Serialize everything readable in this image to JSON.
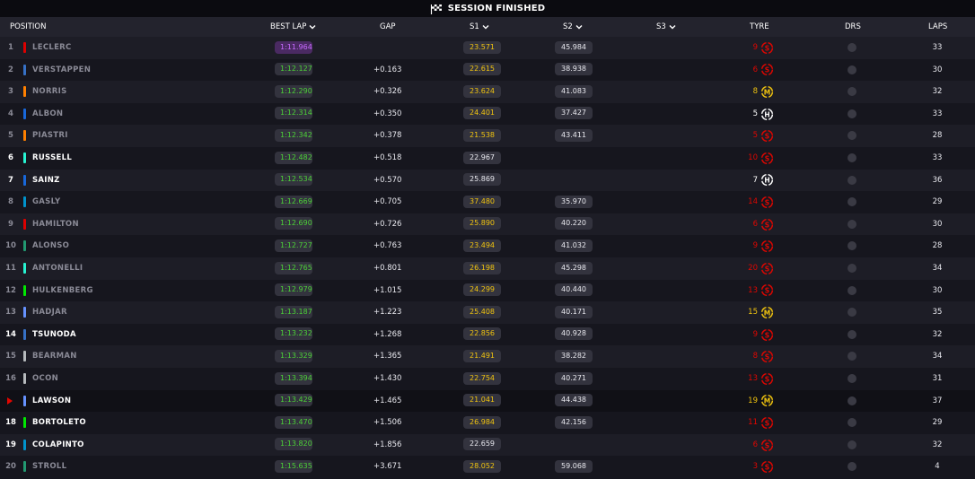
{
  "banner": {
    "title": "SESSION FINISHED",
    "icon": "checkered-flag-icon"
  },
  "columns": {
    "position": "POSITION",
    "best_lap": "BEST LAP",
    "gap": "GAP",
    "s1": "S1",
    "s2": "S2",
    "s3": "S3",
    "tyre": "TYRE",
    "drs": "DRS",
    "laps": "LAPS"
  },
  "colors": {
    "soft": "#e10600",
    "medium": "#f1c40f",
    "hard": "#ffffff",
    "fastest_lap": "#c86bff",
    "personal_best": "#4cd137"
  },
  "rows": [
    {
      "pos": "1",
      "name": "LECLERC",
      "team_color": "#dc0000",
      "best_lap": "1:11.964",
      "gap": "",
      "s1": "23.571",
      "s1_color": "yellow",
      "s2": "45.984",
      "tyre_age": "9",
      "compound": "S",
      "laps": "33",
      "bright": false,
      "fastest": true
    },
    {
      "pos": "2",
      "name": "VERSTAPPEN",
      "team_color": "#3671c6",
      "best_lap": "1:12.127",
      "gap": "+0.163",
      "s1": "22.615",
      "s1_color": "yellow",
      "s2": "38.938",
      "tyre_age": "6",
      "compound": "S",
      "laps": "30",
      "bright": false
    },
    {
      "pos": "3",
      "name": "NORRIS",
      "team_color": "#ff8000",
      "best_lap": "1:12.290",
      "gap": "+0.326",
      "s1": "23.624",
      "s1_color": "yellow",
      "s2": "41.083",
      "tyre_age": "8",
      "compound": "M",
      "laps": "32",
      "bright": false
    },
    {
      "pos": "4",
      "name": "ALBON",
      "team_color": "#1868db",
      "best_lap": "1:12.314",
      "gap": "+0.350",
      "s1": "24.401",
      "s1_color": "yellow",
      "s2": "37.427",
      "tyre_age": "5",
      "compound": "H",
      "laps": "33",
      "bright": false
    },
    {
      "pos": "5",
      "name": "PIASTRI",
      "team_color": "#ff8000",
      "best_lap": "1:12.342",
      "gap": "+0.378",
      "s1": "21.538",
      "s1_color": "yellow",
      "s2": "43.411",
      "tyre_age": "5",
      "compound": "S",
      "laps": "28",
      "bright": false
    },
    {
      "pos": "6",
      "name": "RUSSELL",
      "team_color": "#27f4d2",
      "best_lap": "1:12.482",
      "gap": "+0.518",
      "s1": "22.967",
      "s1_color": "white",
      "s2": "",
      "tyre_age": "10",
      "compound": "S",
      "laps": "33",
      "bright": true
    },
    {
      "pos": "7",
      "name": "SAINZ",
      "team_color": "#1868db",
      "best_lap": "1:12.534",
      "gap": "+0.570",
      "s1": "25.869",
      "s1_color": "white",
      "s2": "",
      "tyre_age": "7",
      "compound": "H",
      "laps": "36",
      "bright": true
    },
    {
      "pos": "8",
      "name": "GASLY",
      "team_color": "#0093cc",
      "best_lap": "1:12.669",
      "gap": "+0.705",
      "s1": "37.480",
      "s1_color": "yellow",
      "s2": "35.970",
      "tyre_age": "14",
      "compound": "S",
      "laps": "29",
      "bright": false
    },
    {
      "pos": "9",
      "name": "HAMILTON",
      "team_color": "#dc0000",
      "best_lap": "1:12.690",
      "gap": "+0.726",
      "s1": "25.890",
      "s1_color": "yellow",
      "s2": "40.220",
      "tyre_age": "6",
      "compound": "S",
      "laps": "30",
      "bright": false
    },
    {
      "pos": "10",
      "name": "ALONSO",
      "team_color": "#229971",
      "best_lap": "1:12.727",
      "gap": "+0.763",
      "s1": "23.494",
      "s1_color": "yellow",
      "s2": "41.032",
      "tyre_age": "9",
      "compound": "S",
      "laps": "28",
      "bright": false
    },
    {
      "pos": "11",
      "name": "ANTONELLI",
      "team_color": "#27f4d2",
      "best_lap": "1:12.765",
      "gap": "+0.801",
      "s1": "26.198",
      "s1_color": "yellow",
      "s2": "45.298",
      "tyre_age": "20",
      "compound": "S",
      "laps": "34",
      "bright": false
    },
    {
      "pos": "12",
      "name": "HULKENBERG",
      "team_color": "#00e701",
      "best_lap": "1:12.979",
      "gap": "+1.015",
      "s1": "24.299",
      "s1_color": "yellow",
      "s2": "40.440",
      "tyre_age": "13",
      "compound": "S",
      "laps": "30",
      "bright": false
    },
    {
      "pos": "13",
      "name": "HADJAR",
      "team_color": "#6692ff",
      "best_lap": "1:13.187",
      "gap": "+1.223",
      "s1": "25.408",
      "s1_color": "yellow",
      "s2": "40.171",
      "tyre_age": "15",
      "compound": "M",
      "laps": "35",
      "bright": false
    },
    {
      "pos": "14",
      "name": "TSUNODA",
      "team_color": "#3671c6",
      "best_lap": "1:13.232",
      "gap": "+1.268",
      "s1": "22.856",
      "s1_color": "yellow",
      "s2": "40.928",
      "tyre_age": "9",
      "compound": "S",
      "laps": "32",
      "bright": true
    },
    {
      "pos": "15",
      "name": "BEARMAN",
      "team_color": "#b6babd",
      "best_lap": "1:13.329",
      "gap": "+1.365",
      "s1": "21.491",
      "s1_color": "yellow",
      "s2": "38.282",
      "tyre_age": "8",
      "compound": "S",
      "laps": "34",
      "bright": false
    },
    {
      "pos": "16",
      "name": "OCON",
      "team_color": "#b6babd",
      "best_lap": "1:13.394",
      "gap": "+1.430",
      "s1": "22.754",
      "s1_color": "yellow",
      "s2": "40.271",
      "tyre_age": "13",
      "compound": "S",
      "laps": "31",
      "bright": false
    },
    {
      "pos": "",
      "name": "LAWSON",
      "team_color": "#6692ff",
      "best_lap": "1:13.429",
      "gap": "+1.465",
      "s1": "21.041",
      "s1_color": "yellow",
      "s2": "44.438",
      "tyre_age": "19",
      "compound": "M",
      "laps": "37",
      "bright": true,
      "current": true
    },
    {
      "pos": "18",
      "name": "BORTOLETO",
      "team_color": "#00e701",
      "best_lap": "1:13.470",
      "gap": "+1.506",
      "s1": "26.984",
      "s1_color": "yellow",
      "s2": "42.156",
      "tyre_age": "11",
      "compound": "S",
      "laps": "29",
      "bright": true
    },
    {
      "pos": "19",
      "name": "COLAPINTO",
      "team_color": "#0093cc",
      "best_lap": "1:13.820",
      "gap": "+1.856",
      "s1": "22.659",
      "s1_color": "white",
      "s2": "",
      "tyre_age": "6",
      "compound": "S",
      "laps": "32",
      "bright": true
    },
    {
      "pos": "20",
      "name": "STROLL",
      "team_color": "#229971",
      "best_lap": "1:15.635",
      "gap": "+3.671",
      "s1": "28.052",
      "s1_color": "yellow",
      "s2": "59.068",
      "tyre_age": "3",
      "compound": "S",
      "laps": "4",
      "bright": false
    }
  ]
}
